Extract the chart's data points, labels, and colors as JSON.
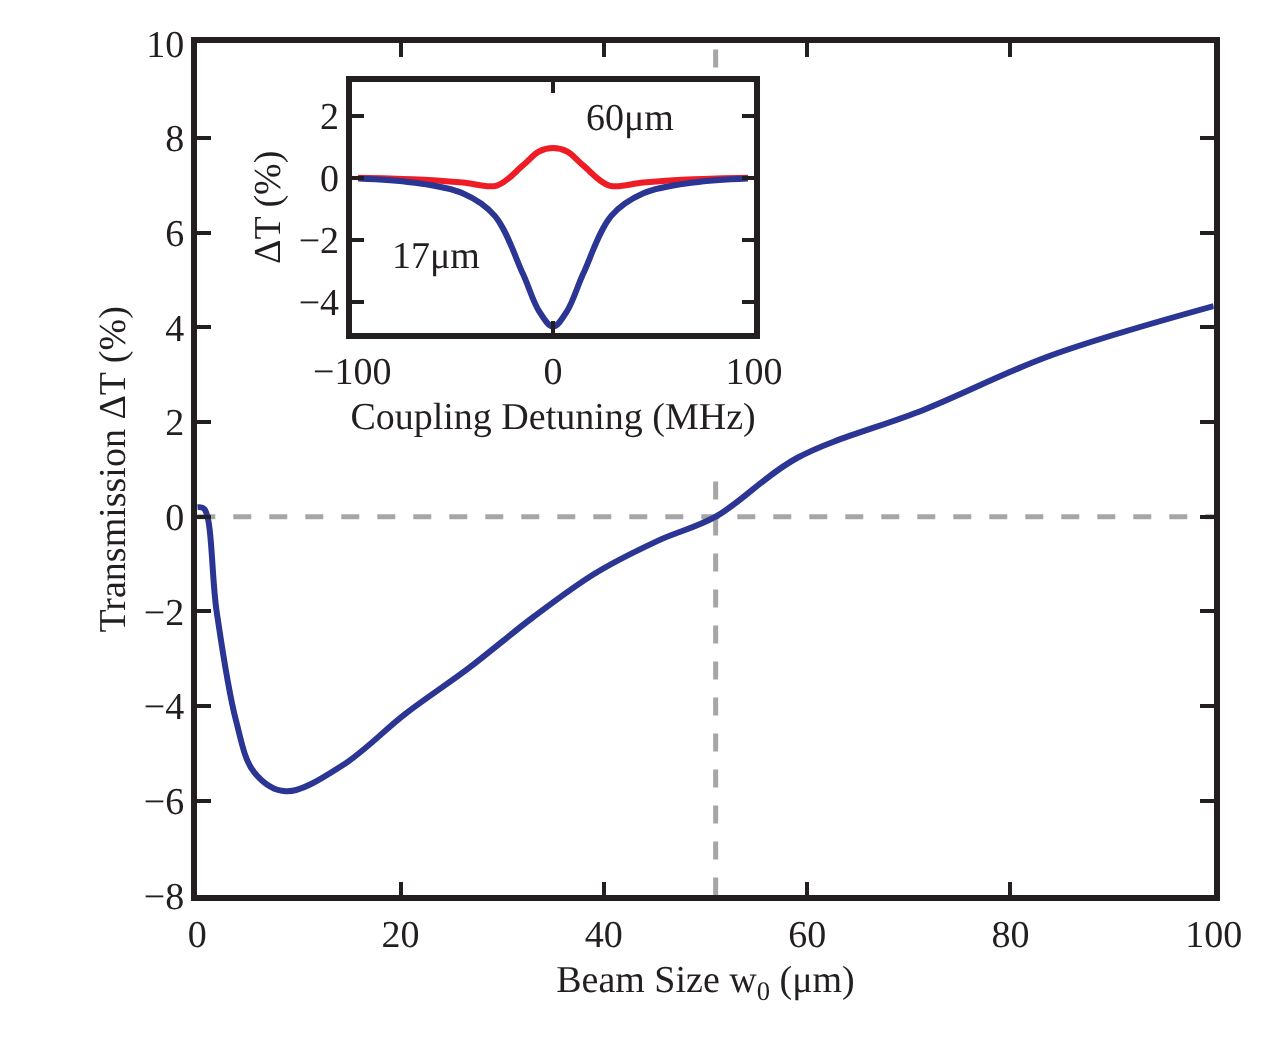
{
  "chart_data": [
    {
      "type": "line",
      "xlabel": "Beam Size w$_{0}$ (μm)",
      "ylabel": "Transmission ΔT (%)",
      "xlim": [
        0,
        100
      ],
      "xticks": [
        0,
        20,
        40,
        60,
        80,
        100
      ],
      "ylim": [
        -8,
        10
      ],
      "yticks": [
        -8,
        -6,
        -4,
        -2,
        0,
        2,
        4,
        6,
        8,
        10
      ],
      "grid": false,
      "line_style": "solid",
      "marker": "none",
      "series": [
        {
          "color": "#2b3594",
          "x": [
            0,
            0.7,
            1.9,
            3.8,
            5.6,
            8.7,
            14.3,
            20.5,
            26.7,
            33,
            39.2,
            45.4,
            51,
            59,
            71.5,
            83.9,
            100
          ],
          "values": [
            0.2,
            0.16,
            -2.0,
            -4.3,
            -5.4,
            -5.8,
            -5.25,
            -4.16,
            -3.2,
            -2.13,
            -1.19,
            -0.5,
            0,
            1.24,
            2.26,
            3.4,
            4.45
          ]
        }
      ],
      "ref_lines": [
        {
          "axis": "y",
          "value": 0,
          "color": "#a6a6a6",
          "line_style": "dashed"
        },
        {
          "axis": "x",
          "value": 51,
          "color": "#a6a6a6",
          "line_style": "dashed"
        }
      ]
    },
    {
      "type": "line",
      "xlabel": "Coupling Detuning (MHz)",
      "ylabel": "ΔT (%)",
      "xlim": [
        -100,
        100
      ],
      "xticks": [
        -100,
        0,
        100
      ],
      "ylim": [
        -5,
        3.1
      ],
      "yticks": [
        -4,
        -2,
        0,
        2
      ],
      "grid": false,
      "line_style": "solid",
      "marker": "none",
      "series": [
        {
          "name": "60μm",
          "color": "#ee1c25",
          "x": [
            -97,
            -70,
            -45,
            -28,
            -15,
            -7,
            0,
            7,
            15,
            28,
            45,
            70,
            97
          ],
          "values": [
            0,
            -0.05,
            -0.15,
            -0.25,
            0.4,
            0.85,
            0.96,
            0.85,
            0.4,
            -0.25,
            -0.15,
            -0.05,
            0
          ]
        },
        {
          "name": "17μm",
          "color": "#2b3594",
          "x": [
            -97,
            -70,
            -45,
            -29,
            -15,
            -7,
            0,
            7,
            15,
            29,
            45,
            70,
            97
          ],
          "values": [
            -0.02,
            -0.15,
            -0.5,
            -1.23,
            -3.1,
            -4.3,
            -4.8,
            -4.3,
            -3.1,
            -1.23,
            -0.5,
            -0.15,
            -0.02
          ]
        }
      ]
    }
  ]
}
